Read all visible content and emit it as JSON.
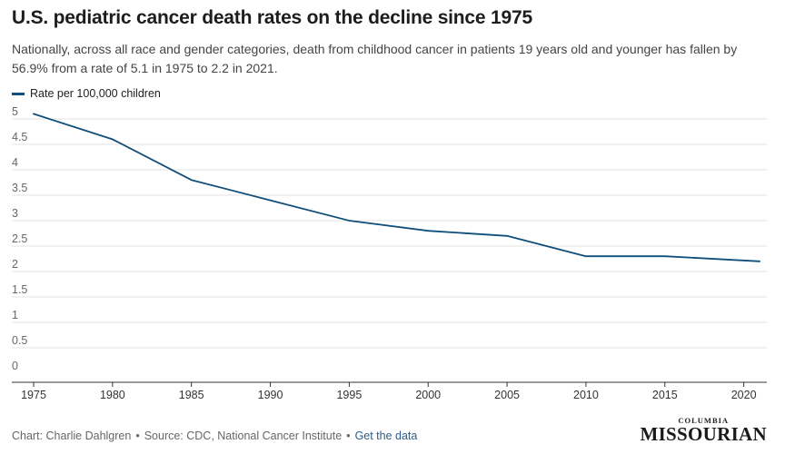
{
  "header": {
    "title": "U.S. pediatric cancer death rates on the decline since 1975",
    "subtitle": "Nationally, across all race and gender categories, death from childhood cancer in patients 19 years old and younger has fallen by 56.9% from a rate of 5.1 in 1975 to 2.2 in 2021."
  },
  "legend": {
    "label": "Rate per 100,000 children",
    "color": "#0f4f7a"
  },
  "chart_data": {
    "type": "line",
    "title": "U.S. pediatric cancer death rates on the decline since 1975",
    "xlabel": "",
    "ylabel": "",
    "xlim": [
      1975,
      2021
    ],
    "ylim": [
      0,
      5
    ],
    "x_ticks": [
      1975,
      1980,
      1985,
      1990,
      1995,
      2000,
      2005,
      2010,
      2015,
      2020
    ],
    "y_ticks": [
      0,
      0.5,
      1,
      1.5,
      2,
      2.5,
      3,
      3.5,
      4,
      4.5,
      5
    ],
    "y_tick_labels": [
      "0",
      "0.5",
      "1",
      "1.5",
      "2",
      "2.5",
      "3",
      "3.5",
      "4",
      "4.5",
      "5"
    ],
    "grid": true,
    "legend_position": "top-left",
    "series": [
      {
        "name": "Rate per 100,000 children",
        "color": "#0f4f7a",
        "x": [
          1975,
          1980,
          1985,
          1990,
          1995,
          2000,
          2005,
          2010,
          2015,
          2021
        ],
        "values": [
          5.1,
          4.6,
          3.8,
          3.4,
          3.0,
          2.8,
          2.7,
          2.3,
          2.3,
          2.2
        ]
      }
    ]
  },
  "footer": {
    "chart_credit": "Chart: Charlie Dahlgren",
    "source": "Source: CDC, National Cancer Institute",
    "data_link": "Get the data",
    "separator": "•"
  },
  "logo": {
    "top": "COLUMBIA",
    "main": "MISSOURIAN"
  }
}
